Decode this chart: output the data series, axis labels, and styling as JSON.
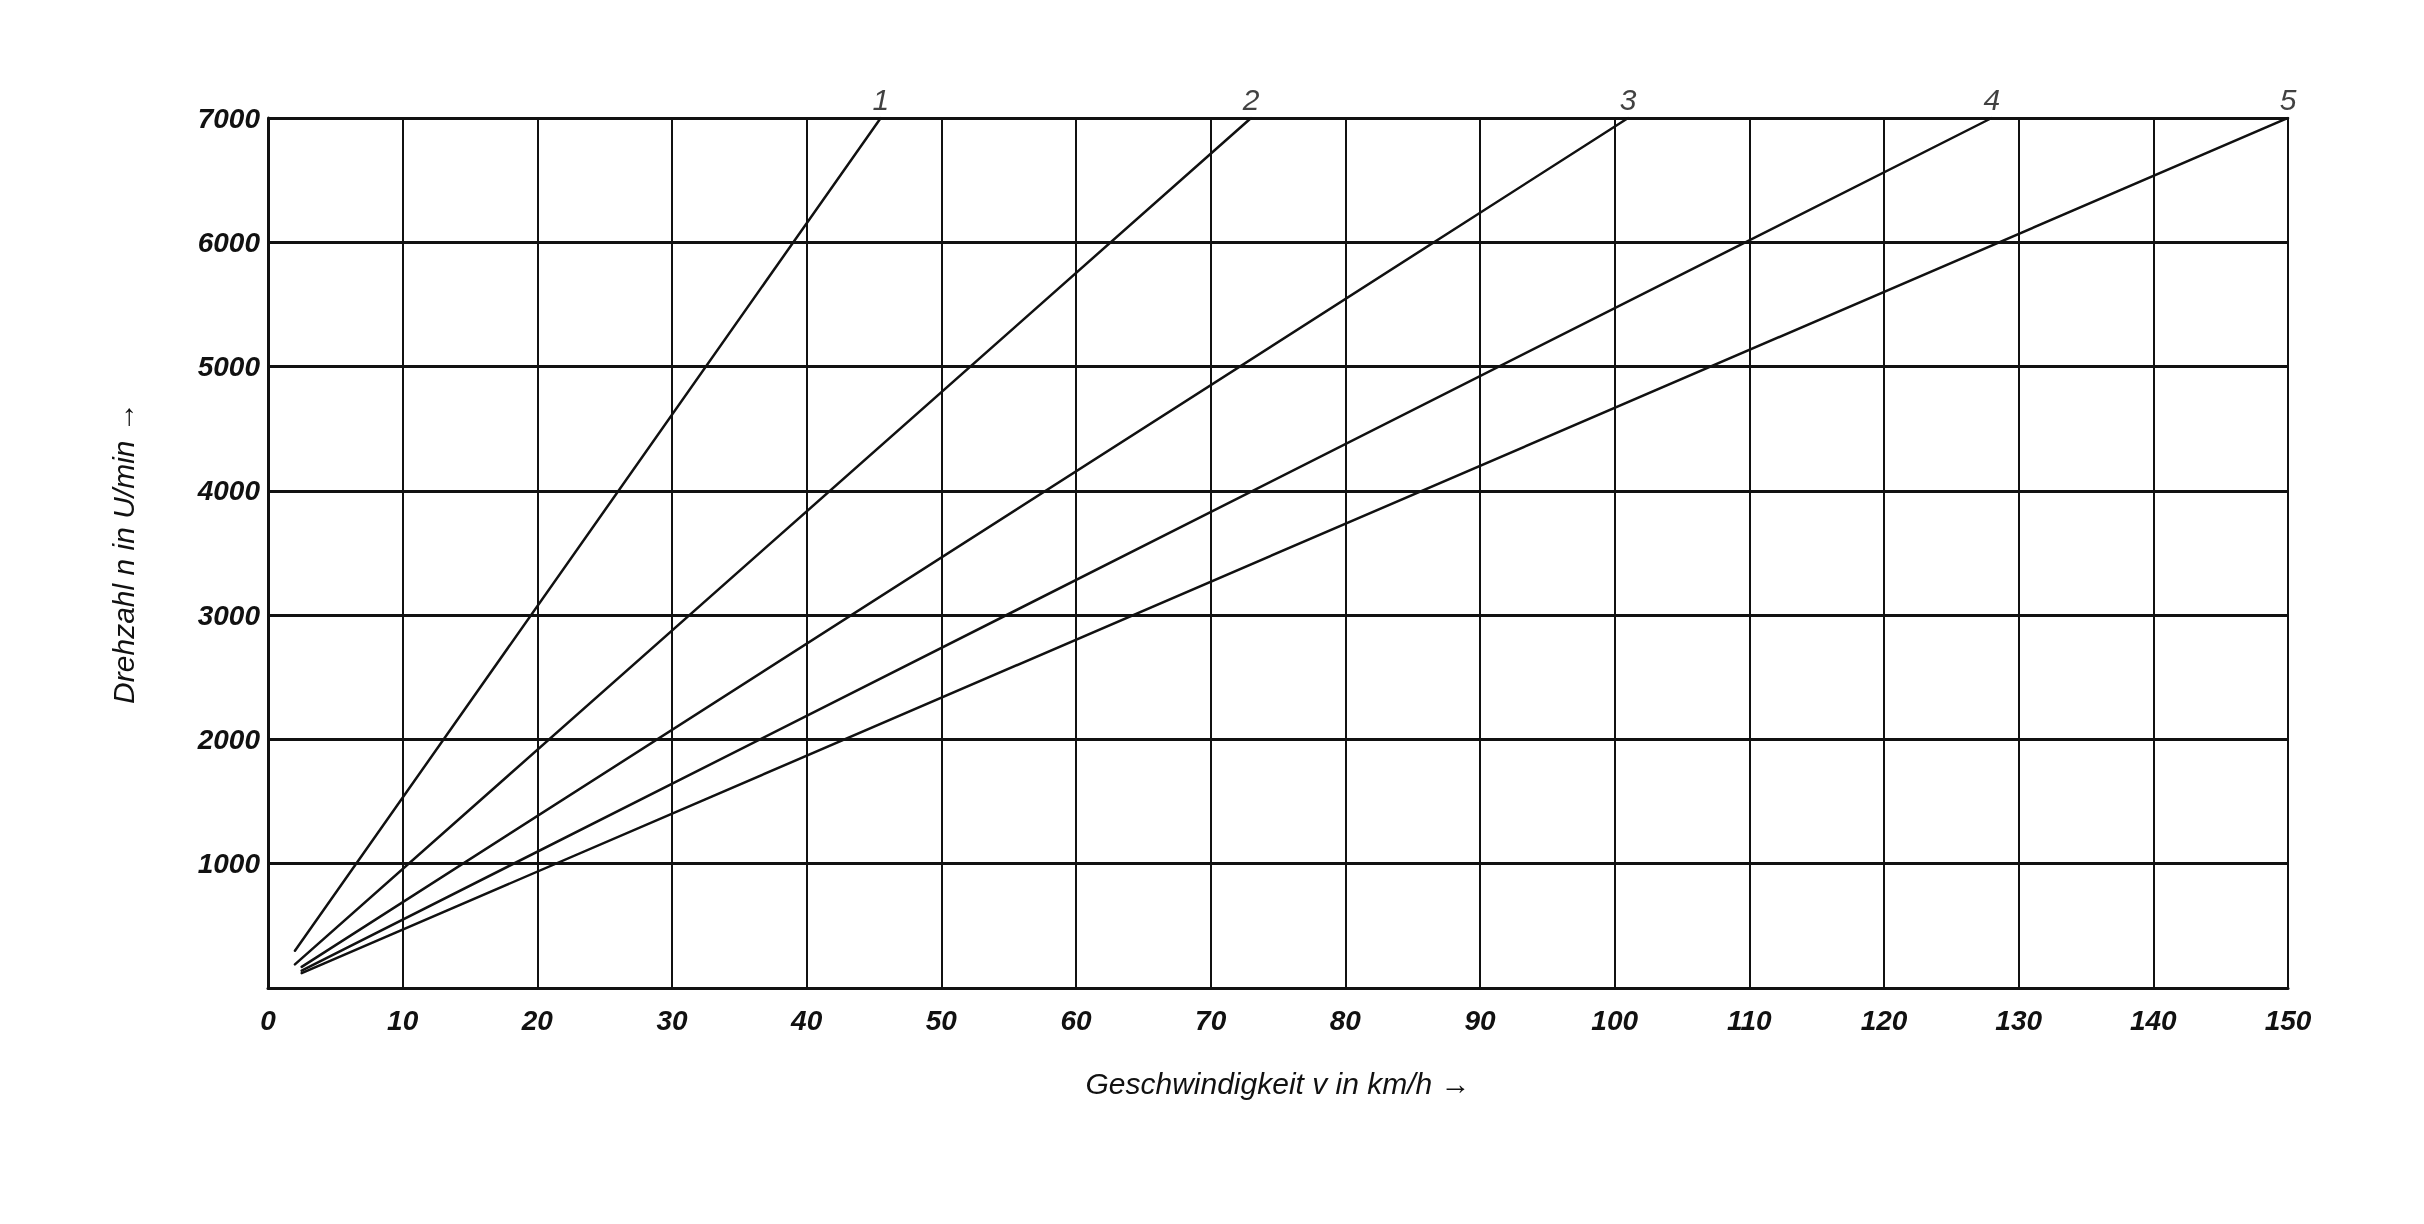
{
  "chart_data": {
    "type": "line",
    "xlabel": "Geschwindigkeit v in km/h →",
    "ylabel": "Drehzahl n in U/min →",
    "series": [
      {
        "color": "#111111",
        "x": [
          2,
          45.5
        ],
        "values": [
          300,
          7000
        ]
      },
      {
        "color": "#111111",
        "x": [
          2,
          73
        ],
        "values": [
          190,
          7000
        ]
      },
      {
        "color": "#111111",
        "x": [
          2.5,
          101
        ],
        "values": [
          170,
          7000
        ]
      },
      {
        "color": "#111111",
        "x": [
          2.5,
          128
        ],
        "values": [
          140,
          7000
        ]
      },
      {
        "color": "#111111",
        "x": [
          2.5,
          150
        ],
        "values": [
          120,
          7000
        ]
      }
    ],
    "annotations": [
      {
        "text": "1",
        "x": 45.5,
        "y": 7000
      },
      {
        "text": "2",
        "x": 73,
        "y": 7000
      },
      {
        "text": "3",
        "x": 101,
        "y": 7000
      },
      {
        "text": "4",
        "x": 128,
        "y": 7000
      },
      {
        "text": "5",
        "x": 150,
        "y": 7000
      }
    ],
    "xlim": [
      0,
      150
    ],
    "xticks": [
      0,
      10,
      20,
      30,
      40,
      50,
      60,
      70,
      80,
      90,
      100,
      110,
      120,
      130,
      140,
      150
    ],
    "ylim": [
      0,
      7000
    ],
    "yticks": [
      {
        "value": 0,
        "label": null
      },
      1000,
      2000,
      3000,
      4000,
      5000,
      6000,
      7000
    ],
    "grid": true,
    "marker": "none",
    "line_style": "solid"
  }
}
